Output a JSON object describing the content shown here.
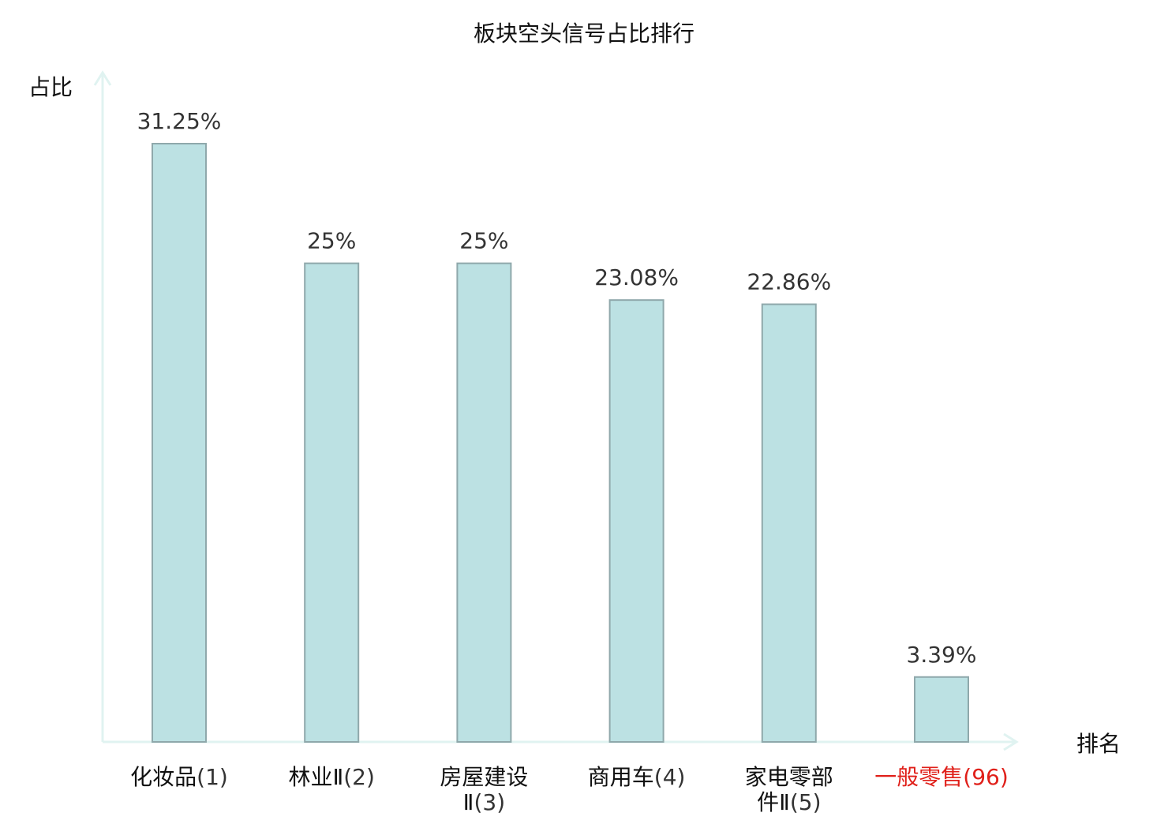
{
  "chart_data": {
    "type": "bar",
    "title": "板块空头信号占比排行",
    "ylabel": "占比",
    "xlabel": "排名",
    "categories": [
      {
        "name_lines": [
          "化妆品"
        ],
        "rank": "(1)",
        "highlight": false
      },
      {
        "name_lines": [
          "林业Ⅱ"
        ],
        "rank": "(2)",
        "highlight": false
      },
      {
        "name_lines": [
          "房屋建设",
          "Ⅱ"
        ],
        "rank": "(3)",
        "highlight": false
      },
      {
        "name_lines": [
          "商用车"
        ],
        "rank": "(4)",
        "highlight": false
      },
      {
        "name_lines": [
          "家电零部",
          "件Ⅱ"
        ],
        "rank": "(5)",
        "highlight": false
      },
      {
        "name_lines": [
          "一般零售"
        ],
        "rank": "(96)",
        "highlight": true
      }
    ],
    "values": [
      31.25,
      25,
      25,
      23.08,
      22.86,
      3.39
    ],
    "value_labels": [
      "31.25%",
      "25%",
      "25%",
      "23.08%",
      "22.86%",
      "3.39%"
    ],
    "ylim": [
      0,
      31.25
    ],
    "grid": false,
    "legend": "none",
    "colors": {
      "bar_fill": "#bce1e3",
      "bar_stroke": "#8fa8ab",
      "axis": "#e0f3f1",
      "text": "#111111",
      "value_text": "#333333",
      "highlight_text": "#e0201a"
    }
  }
}
